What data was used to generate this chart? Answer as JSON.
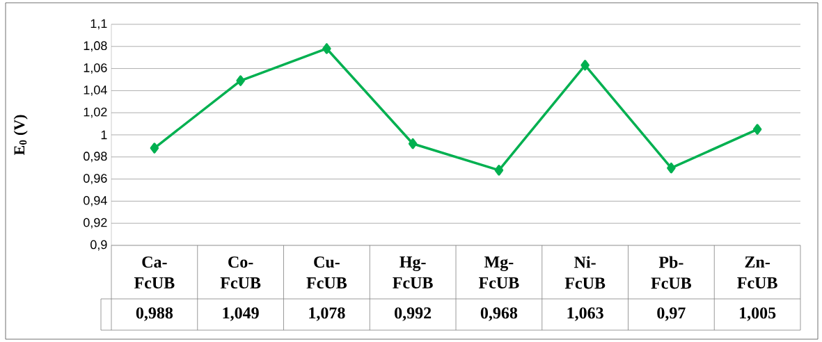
{
  "chart_data": {
    "type": "line",
    "ylabel": "E$_{0}$ (V)",
    "categories": [
      "Ca-FcUB",
      "Co-FcUB",
      "Cu-FcUB",
      "Hg-FcUB",
      "Mg-FcUB",
      "Ni-FcUB",
      "Pb-FcUB",
      "Zn-FcUB"
    ],
    "values": [
      0.988,
      1.049,
      1.078,
      0.992,
      0.968,
      1.063,
      0.97,
      1.005
    ],
    "value_labels": [
      "0,988",
      "1,049",
      "1,078",
      "0,992",
      "0,968",
      "1,063",
      "0,97",
      "1,005"
    ],
    "color": "#00b050",
    "marker": "diamond",
    "line_style": "solid",
    "grid": "y",
    "ylim": [
      0.9,
      1.1
    ],
    "yticks": [
      {
        "value": 0.9,
        "label": "0,9"
      },
      {
        "value": 0.92,
        "label": "0,92"
      },
      {
        "value": 0.94,
        "label": "0,94"
      },
      {
        "value": 0.96,
        "label": "0,96"
      },
      {
        "value": 0.98,
        "label": "0,98"
      },
      {
        "value": 1,
        "label": "1"
      },
      {
        "value": 1.02,
        "label": "1,02"
      },
      {
        "value": 1.04,
        "label": "1,04"
      },
      {
        "value": 1.06,
        "label": "1,06"
      },
      {
        "value": 1.08,
        "label": "1,08"
      },
      {
        "value": 1.1,
        "label": "1,1"
      }
    ]
  }
}
